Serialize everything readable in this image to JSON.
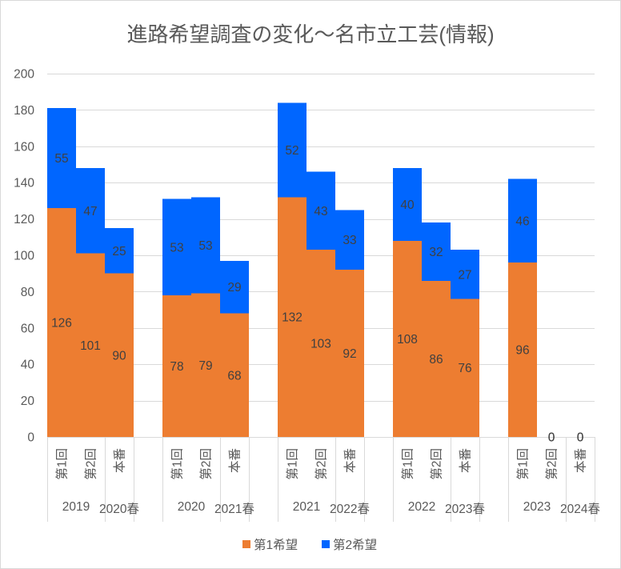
{
  "chart_data": {
    "type": "bar",
    "stacked": true,
    "title": "進路希望調査の変化～名市立工芸(情報)",
    "xlabel": "",
    "ylabel": "",
    "ylim": [
      0,
      200
    ],
    "yticks": [
      0,
      20,
      40,
      60,
      80,
      100,
      120,
      140,
      160,
      180,
      200
    ],
    "grid": true,
    "legend_position": "bottom",
    "categories": [
      "第1回",
      "第2回",
      "本番",
      "第1回",
      "第2回",
      "本番",
      "第1回",
      "第2回",
      "本番",
      "第1回",
      "第2回",
      "本番",
      "第1回",
      "第2回",
      "本番"
    ],
    "groups": [
      {
        "year": "2019",
        "spring": "2020春"
      },
      {
        "year": "2020",
        "spring": "2021春"
      },
      {
        "year": "2021",
        "spring": "2022春"
      },
      {
        "year": "2022",
        "spring": "2023春"
      },
      {
        "year": "2023",
        "spring": "2024春"
      }
    ],
    "series": [
      {
        "name": "第1希望",
        "color": "#ED7D31",
        "values": [
          126,
          101,
          90,
          78,
          79,
          68,
          132,
          103,
          92,
          108,
          86,
          76,
          96,
          0,
          0
        ]
      },
      {
        "name": "第2希望",
        "color": "#0066FF",
        "values": [
          55,
          47,
          25,
          53,
          53,
          29,
          52,
          43,
          33,
          40,
          32,
          27,
          46,
          0,
          0
        ]
      }
    ]
  }
}
